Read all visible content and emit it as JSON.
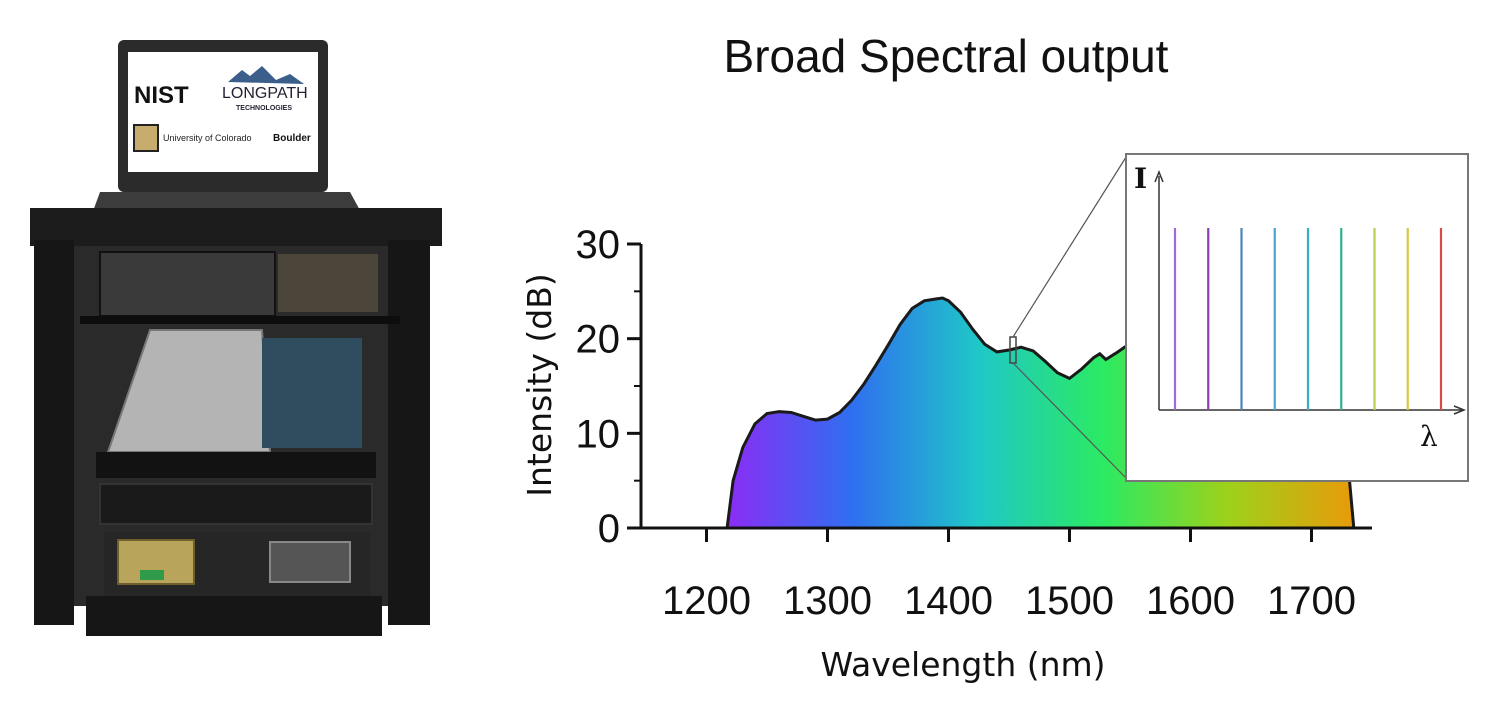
{
  "photo": {
    "screen_logos": [
      "NIST",
      "LONGPATH",
      "TECHNOLOGIES",
      "University of Colorado",
      "Boulder"
    ]
  },
  "chart_data": {
    "type": "area",
    "title": "Broad Spectral output",
    "xlabel": "Wavelength (nm)",
    "ylabel": "Intensity (dB)",
    "xlim": [
      1150,
      1750
    ],
    "ylim": [
      0,
      30
    ],
    "xticks": [
      1200,
      1300,
      1400,
      1500,
      1600,
      1700
    ],
    "yticks": [
      0,
      10,
      20,
      30
    ],
    "grid": false,
    "legend": "none",
    "series": [
      {
        "x": [
          1217,
          1222,
          1230,
          1240,
          1250,
          1260,
          1270,
          1280,
          1290,
          1300,
          1310,
          1320,
          1330,
          1340,
          1350,
          1360,
          1370,
          1380,
          1390,
          1395,
          1400,
          1410,
          1420,
          1430,
          1440,
          1450,
          1460,
          1470,
          1480,
          1490,
          1500,
          1510,
          1520,
          1525,
          1530,
          1540,
          1550,
          1560,
          1600,
          1650,
          1700,
          1720,
          1730,
          1735
        ],
        "values": [
          0,
          5,
          8.5,
          11,
          12.1,
          12.3,
          12.2,
          11.8,
          11.4,
          11.5,
          12.2,
          13.5,
          15.2,
          17.2,
          19.3,
          21.5,
          23.2,
          24,
          24.2,
          24.3,
          24,
          22.8,
          21,
          19.4,
          18.6,
          18.8,
          19.1,
          18.7,
          17.6,
          16.4,
          15.8,
          16.8,
          18,
          18.4,
          17.8,
          18.6,
          19.5,
          20.2,
          20.5,
          20,
          18.5,
          14,
          7,
          0
        ]
      }
    ],
    "gradient_colors": [
      "#8b2cf5",
      "#2f6ff0",
      "#1fc7c7",
      "#2bea63",
      "#9ed11a",
      "#e89b0a"
    ],
    "inset": {
      "type": "comb",
      "ylabel": "I",
      "xlabel": "λ",
      "lines": 9,
      "line_colors": [
        "#9b6bd6",
        "#8a3fb8",
        "#4b85b8",
        "#49a3d4",
        "#38b0c2",
        "#31b08f",
        "#b8cf55",
        "#d8c63f",
        "#d94a4a"
      ]
    }
  }
}
